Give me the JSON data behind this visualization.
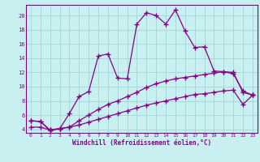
{
  "xlabel": "Windchill (Refroidissement éolien,°C)",
  "bg_color": "#c8f0f0",
  "grid_color": "#a8d8d8",
  "line_color": "#880088",
  "x_values": [
    0,
    1,
    2,
    3,
    4,
    5,
    6,
    7,
    8,
    9,
    10,
    11,
    12,
    13,
    14,
    15,
    16,
    17,
    18,
    19,
    20,
    21,
    22,
    23
  ],
  "line1": [
    5.2,
    5.1,
    3.8,
    4.1,
    6.2,
    8.6,
    9.3,
    14.3,
    14.6,
    11.2,
    11.1,
    18.8,
    20.4,
    20.0,
    18.8,
    20.8,
    17.8,
    15.5,
    15.6,
    12.2,
    12.1,
    11.8,
    9.4,
    8.8
  ],
  "line2": [
    5.2,
    5.1,
    3.9,
    4.1,
    4.3,
    5.2,
    6.0,
    6.8,
    7.5,
    8.0,
    8.6,
    9.2,
    9.9,
    10.4,
    10.8,
    11.1,
    11.3,
    11.5,
    11.7,
    11.9,
    12.1,
    12.0,
    9.2,
    8.8
  ],
  "line3": [
    4.3,
    4.3,
    3.9,
    4.1,
    4.3,
    4.6,
    5.0,
    5.4,
    5.8,
    6.2,
    6.6,
    7.0,
    7.4,
    7.7,
    8.0,
    8.3,
    8.6,
    8.9,
    9.0,
    9.2,
    9.4,
    9.5,
    7.5,
    8.8
  ],
  "ylim": [
    3.5,
    21.5
  ],
  "xlim": [
    -0.5,
    23.5
  ],
  "yticks": [
    4,
    6,
    8,
    10,
    12,
    14,
    16,
    18,
    20
  ],
  "xticks": [
    0,
    1,
    2,
    3,
    4,
    5,
    6,
    7,
    8,
    9,
    10,
    11,
    12,
    13,
    14,
    15,
    16,
    17,
    18,
    19,
    20,
    21,
    22,
    23
  ]
}
